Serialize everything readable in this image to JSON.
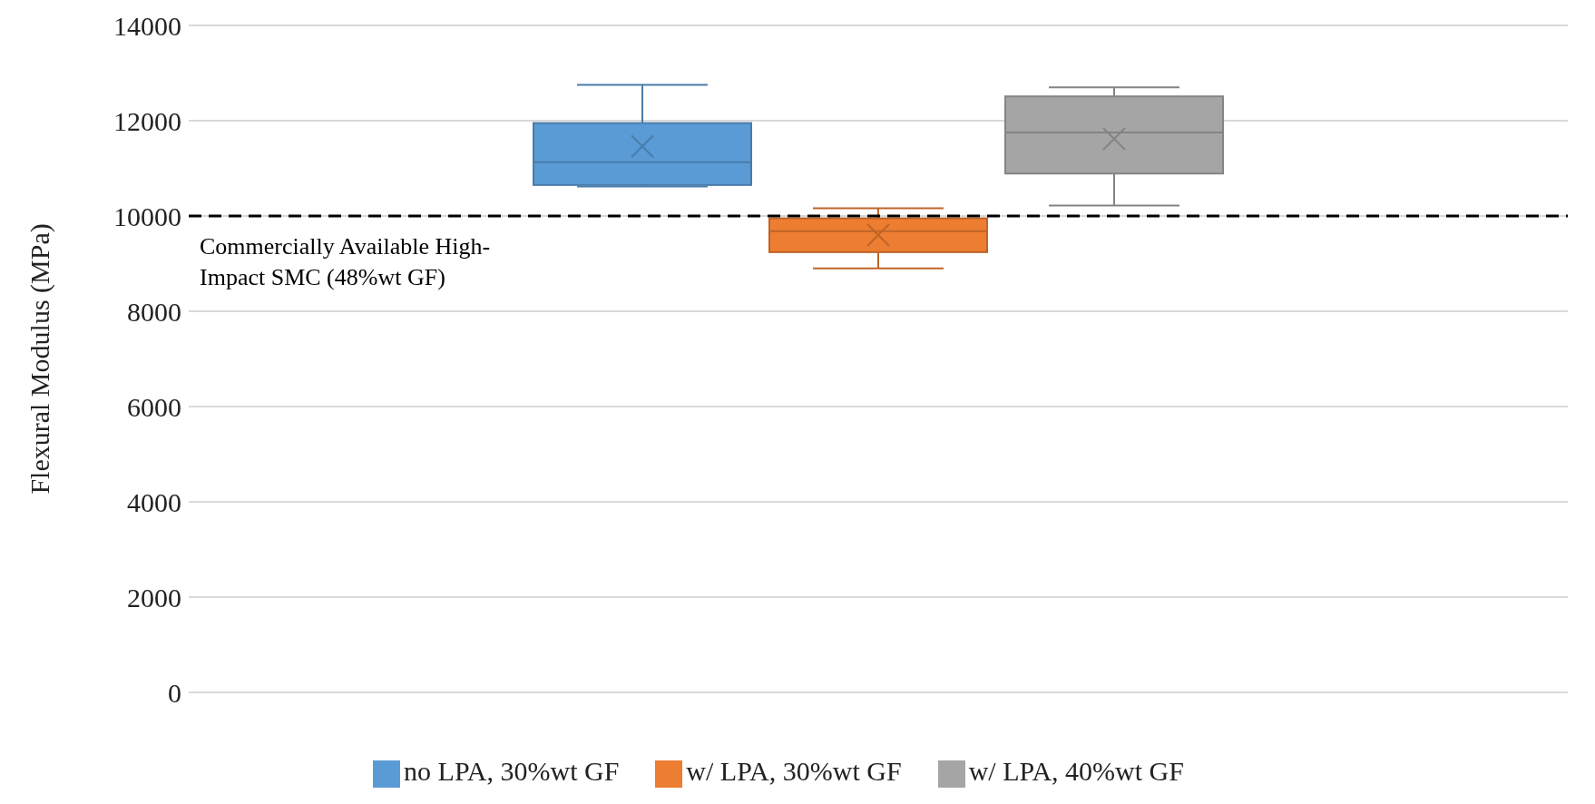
{
  "chart_data": {
    "type": "box",
    "ylabel": "Flexural Modulus (MPa)",
    "categories": [
      null
    ],
    "ylim": [
      0,
      14000
    ],
    "yticks": [
      0,
      2000,
      4000,
      6000,
      8000,
      10000,
      12000,
      14000
    ],
    "grid": "y",
    "legend": "bottom",
    "series": [
      {
        "name": "no LPA, 30%wt GF",
        "color": "#5b9bd5",
        "boxes": [
          {
            "low": 10620,
            "q1": 10650,
            "median": 11130,
            "q3": 11950,
            "high": 12750,
            "mean": 11460
          }
        ]
      },
      {
        "name": "w/ LPA, 30%wt GF",
        "color": "#ed7d31",
        "boxes": [
          {
            "low": 8900,
            "q1": 9240,
            "median": 9680,
            "q3": 9950,
            "high": 10160,
            "mean": 9600
          }
        ]
      },
      {
        "name": "w/ LPA, 40%wt GF",
        "color": "#a5a5a5",
        "boxes": [
          {
            "low": 10220,
            "q1": 10890,
            "median": 11750,
            "q3": 12510,
            "high": 12700,
            "mean": 11620
          }
        ]
      }
    ],
    "ref_lines": [
      {
        "axis": "y",
        "value": 10000,
        "label": "Commercially Available High-Impact SMC (48%wt GF)",
        "color": "#000000",
        "line_style": "dashed"
      }
    ]
  }
}
